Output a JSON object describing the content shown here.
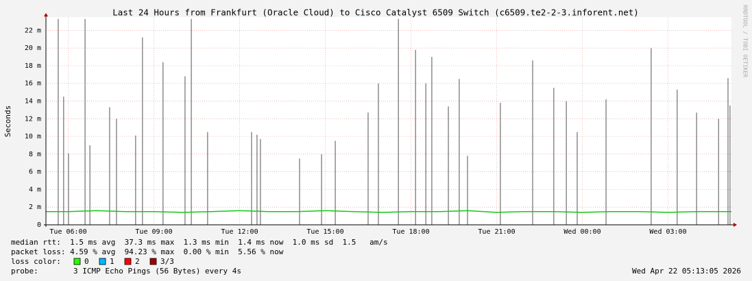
{
  "chart_data": {
    "type": "line",
    "title": "Last 24 Hours from Frankfurt (Oracle Cloud) to Cisco Catalyst 6509 Switch (c6509.te2-2-3.inforent.net)",
    "y_label": "Seconds",
    "watermark": "RRDTOOL / TOBI OETIKER",
    "xlim": [
      5.22,
      29.22
    ],
    "xticks": [
      {
        "value": 6,
        "label": "Tue 06:00"
      },
      {
        "value": 9,
        "label": "Tue 09:00"
      },
      {
        "value": 12,
        "label": "Tue 12:00"
      },
      {
        "value": 15,
        "label": "Tue 15:00"
      },
      {
        "value": 18,
        "label": "Tue 18:00"
      },
      {
        "value": 21,
        "label": "Tue 21:00"
      },
      {
        "value": 24,
        "label": "Wed 00:00"
      },
      {
        "value": 27,
        "label": "Wed 03:00"
      }
    ],
    "ylim": [
      0,
      0.0235
    ],
    "yticks": [
      {
        "value": 0,
        "label": "0"
      },
      {
        "value": 0.002,
        "label": "2 m"
      },
      {
        "value": 0.004,
        "label": "4 m"
      },
      {
        "value": 0.006,
        "label": "6 m"
      },
      {
        "value": 0.008,
        "label": "8 m"
      },
      {
        "value": 0.01,
        "label": "10 m"
      },
      {
        "value": 0.012,
        "label": "12 m"
      },
      {
        "value": 0.014,
        "label": "14 m"
      },
      {
        "value": 0.016,
        "label": "16 m"
      },
      {
        "value": 0.018,
        "label": "18 m"
      },
      {
        "value": 0.02,
        "label": "20 m"
      },
      {
        "value": 0.022,
        "label": "22 m"
      }
    ],
    "grid": true,
    "series": [
      {
        "name": "max",
        "kind": "spikes",
        "color": "#6e6e6e",
        "x": [
          5.65,
          5.84,
          6.01,
          6.59,
          6.76,
          7.45,
          7.69,
          8.36,
          8.6,
          9.32,
          10.09,
          10.31,
          10.88,
          12.42,
          12.61,
          12.73,
          14.1,
          14.87,
          15.35,
          16.5,
          16.86,
          17.56,
          18.16,
          18.52,
          18.73,
          19.31,
          19.69,
          19.98,
          21.13,
          22.26,
          23.0,
          23.44,
          23.82,
          24.83,
          26.41,
          27.32,
          28.0,
          28.77,
          29.1,
          29.17
        ],
        "values": [
          0.0233,
          0.0145,
          0.0081,
          0.0233,
          0.009,
          0.0133,
          0.012,
          0.0101,
          0.0212,
          0.0184,
          0.0168,
          0.0233,
          0.0105,
          0.0105,
          0.0102,
          0.0097,
          0.0075,
          0.008,
          0.0095,
          0.0127,
          0.016,
          0.0233,
          0.0198,
          0.016,
          0.019,
          0.0134,
          0.0165,
          0.0078,
          0.0138,
          0.0186,
          0.0155,
          0.014,
          0.0105,
          0.0142,
          0.02,
          0.0153,
          0.0127,
          0.012,
          0.0166,
          0.0135
        ]
      },
      {
        "name": "median rtt",
        "kind": "line",
        "color": "#14c814",
        "x": [
          5.22,
          6,
          7,
          8,
          9,
          10,
          11,
          12,
          13,
          14,
          15,
          16,
          17,
          18,
          19,
          20,
          21,
          22,
          23,
          24,
          25,
          26,
          27,
          28,
          29,
          29.22
        ],
        "values": [
          0.0015,
          0.0015,
          0.0016,
          0.0015,
          0.0015,
          0.0014,
          0.0015,
          0.0016,
          0.0015,
          0.0015,
          0.0016,
          0.0015,
          0.0014,
          0.0015,
          0.0015,
          0.0016,
          0.0014,
          0.0015,
          0.0015,
          0.0014,
          0.0015,
          0.0015,
          0.0014,
          0.0015,
          0.0015,
          0.0015
        ]
      }
    ],
    "stats": [
      "median rtt:  1.5 ms avg  37.3 ms max  1.3 ms min  1.4 ms now  1.0 ms sd  1.5   am/s",
      "packet loss: 4.59 % avg  94.23 % max  0.00 % min  5.56 % now"
    ],
    "loss_label": "loss color:",
    "loss_colors": [
      {
        "label": "0",
        "color": "#26ff00"
      },
      {
        "label": "1",
        "color": "#00b8ff"
      },
      {
        "label": "2",
        "color": "#ff0000"
      },
      {
        "label": "3/3",
        "color": "#a00000"
      }
    ],
    "probe_label": "probe:",
    "probe": "3 ICMP Echo Pings (56 Bytes) every 4s",
    "timestamp": "Wed Apr 22 05:13:05 2026"
  }
}
